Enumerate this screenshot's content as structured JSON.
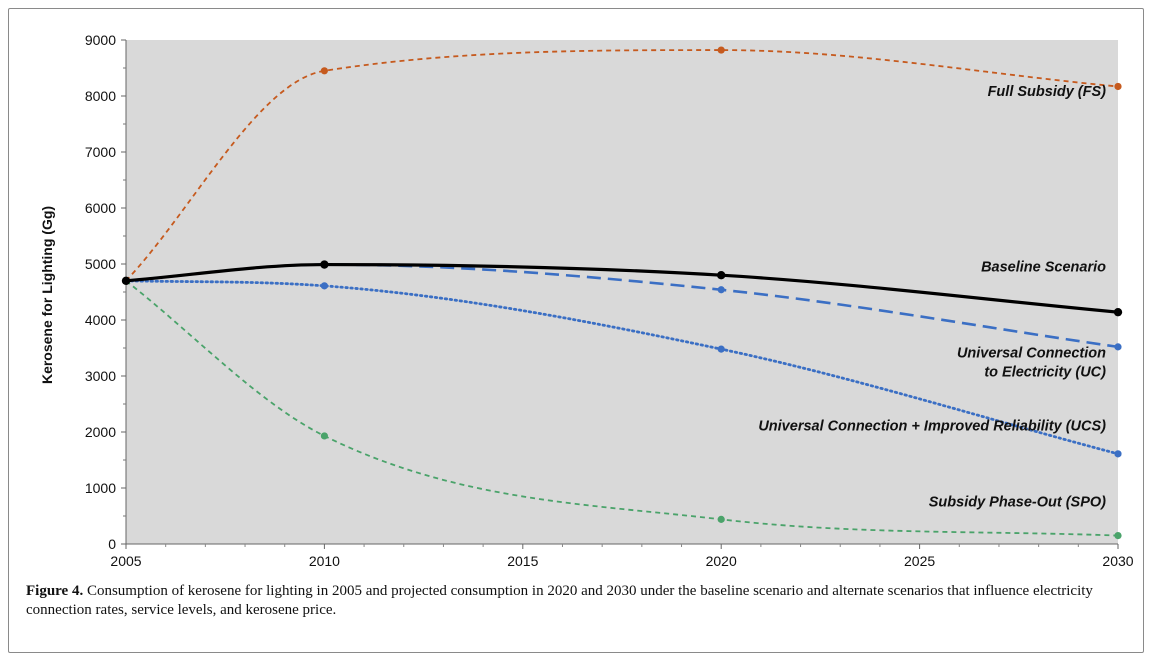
{
  "chart_data": {
    "type": "line",
    "title": "",
    "xlabel": "",
    "ylabel": "Kerosene for Lighting (Gg)",
    "xlim": [
      2005,
      2030
    ],
    "ylim": [
      0,
      9000
    ],
    "x_ticks": [
      2005,
      2010,
      2015,
      2020,
      2025,
      2030
    ],
    "y_ticks": [
      0,
      1000,
      2000,
      3000,
      4000,
      5000,
      6000,
      7000,
      8000,
      9000
    ],
    "background": "#d9d9d9",
    "grid": false,
    "legend": "inline labels at right",
    "x": [
      2005,
      2010,
      2020,
      2030
    ],
    "series": [
      {
        "name": "Full Subsidy (FS)",
        "values": [
          4700,
          8450,
          8820,
          8170
        ],
        "color": "#c65a1e",
        "style": "dashed"
      },
      {
        "name": "Baseline Scenario",
        "values": [
          4700,
          4990,
          4800,
          4140
        ],
        "color": "#000000",
        "style": "solid"
      },
      {
        "name": "Universal Connection to Electricity (UC)",
        "label_lines": [
          "Universal Connection",
          "to Electricity (UC)"
        ],
        "values": [
          4700,
          4990,
          4540,
          3520
        ],
        "color": "#3b6fc4",
        "style": "long-dashed"
      },
      {
        "name": "Universal Connection + Improved Reliability (UCS)",
        "values": [
          4700,
          4610,
          3480,
          1610
        ],
        "color": "#3b6fc4",
        "style": "dotted"
      },
      {
        "name": "Subsidy Phase-Out (SPO)",
        "values": [
          4700,
          1930,
          440,
          150
        ],
        "color": "#4aa36a",
        "style": "dashed"
      }
    ]
  },
  "caption": {
    "label": "Figure 4.",
    "text": " Consumption of kerosene for lighting in 2005 and projected consumption in 2020 and 2030 under the baseline scenario and alternate scenarios that influence electricity connection rates, service levels, and kerosene price."
  }
}
